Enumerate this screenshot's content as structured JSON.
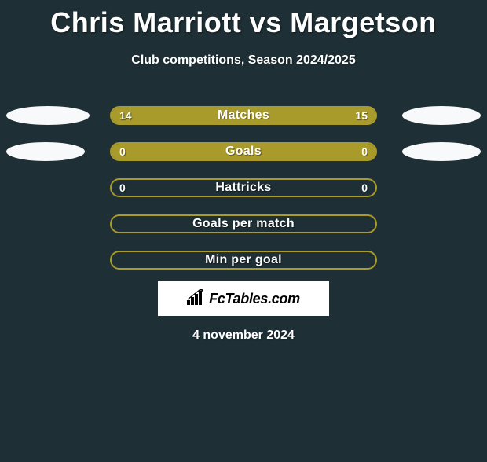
{
  "title": "Chris Marriott vs Margetson",
  "subtitle": "Club competitions, Season 2024/2025",
  "date": "4 november 2024",
  "logo_text": "FcTables.com",
  "colors": {
    "page_bg": "#1e3036",
    "ellipse_color": "#f8f9fa",
    "bar_fill": "#a89b2b",
    "bar_border_filled": "#a89b2b",
    "bar_border_empty": "#a89b2b",
    "text": "#ffffff"
  },
  "ellipse_geometry": {
    "row0": {
      "left_w": 106,
      "left_h": 24,
      "right_w": 100,
      "right_h": 24
    },
    "row1": {
      "left_w": 100,
      "left_h": 24,
      "right_w": 100,
      "right_h": 24
    }
  },
  "rows": [
    {
      "label": "Matches",
      "left_value": "14",
      "right_value": "15",
      "left_pct": 48.3,
      "right_pct": 51.7,
      "show_ellipse": true,
      "ellipse_key": "row0"
    },
    {
      "label": "Goals",
      "left_value": "0",
      "right_value": "0",
      "left_pct": 50,
      "right_pct": 50,
      "show_ellipse": true,
      "ellipse_key": "row1"
    },
    {
      "label": "Hattricks",
      "left_value": "0",
      "right_value": "0",
      "left_pct": 0,
      "right_pct": 0,
      "show_ellipse": false
    },
    {
      "label": "Goals per match",
      "left_value": "",
      "right_value": "",
      "left_pct": 0,
      "right_pct": 0,
      "show_ellipse": false
    },
    {
      "label": "Min per goal",
      "left_value": "",
      "right_value": "",
      "left_pct": 0,
      "right_pct": 0,
      "show_ellipse": false
    }
  ]
}
